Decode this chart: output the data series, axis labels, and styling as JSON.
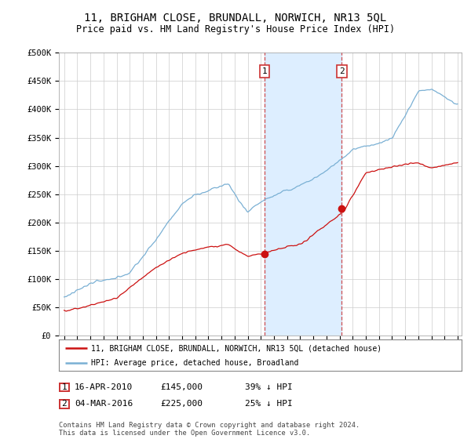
{
  "title": "11, BRIGHAM CLOSE, BRUNDALL, NORWICH, NR13 5QL",
  "subtitle": "Price paid vs. HM Land Registry's House Price Index (HPI)",
  "title_fontsize": 10,
  "subtitle_fontsize": 8.5,
  "ylim": [
    0,
    500000
  ],
  "yticks": [
    0,
    50000,
    100000,
    150000,
    200000,
    250000,
    300000,
    350000,
    400000,
    450000,
    500000
  ],
  "ytick_labels": [
    "£0",
    "£50K",
    "£100K",
    "£150K",
    "£200K",
    "£250K",
    "£300K",
    "£350K",
    "£400K",
    "£450K",
    "£500K"
  ],
  "hpi_color": "#7ab0d4",
  "price_color": "#cc1111",
  "sale1_date": 2010.29,
  "sale1_price": 145000,
  "sale2_date": 2016.17,
  "sale2_price": 225000,
  "shade_color": "#ddeeff",
  "vline_color": "#cc3333",
  "legend_text1": "11, BRIGHAM CLOSE, BRUNDALL, NORWICH, NR13 5QL (detached house)",
  "legend_text2": "HPI: Average price, detached house, Broadland",
  "table_row1": [
    "1",
    "16-APR-2010",
    "£145,000",
    "39% ↓ HPI"
  ],
  "table_row2": [
    "2",
    "04-MAR-2016",
    "£225,000",
    "25% ↓ HPI"
  ],
  "footer": "Contains HM Land Registry data © Crown copyright and database right 2024.\nThis data is licensed under the Open Government Licence v3.0.",
  "bg_color": "#ffffff",
  "grid_color": "#cccccc"
}
